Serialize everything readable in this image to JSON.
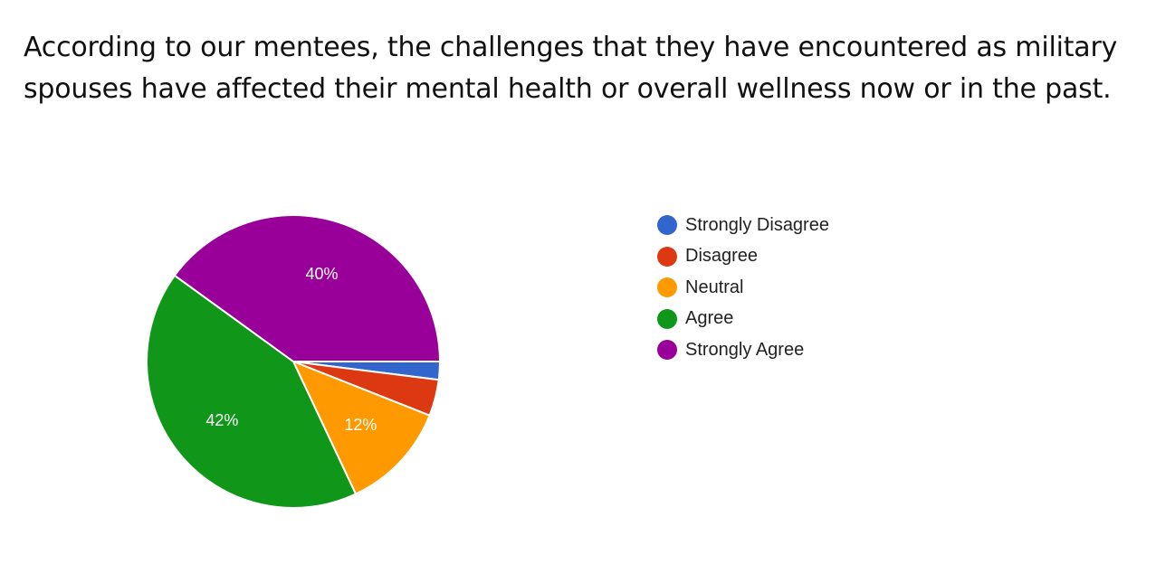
{
  "chart_data": {
    "type": "pie",
    "title": "According to our mentees, the challenges that they have encountered as military spouses have affected their mental health or overall wellness now or in the past.",
    "categories": [
      "Strongly Disagree",
      "Disagree",
      "Neutral",
      "Agree",
      "Strongly Agree"
    ],
    "values": [
      2,
      4,
      12,
      42,
      40
    ],
    "data_labels": [
      "",
      "",
      "12%",
      "42%",
      "40%"
    ],
    "colors": [
      "#3366cc",
      "#dc3912",
      "#ff9900",
      "#109618",
      "#990099"
    ],
    "start_angle_deg": 0,
    "direction": "clockwise",
    "legend_position": "right"
  }
}
